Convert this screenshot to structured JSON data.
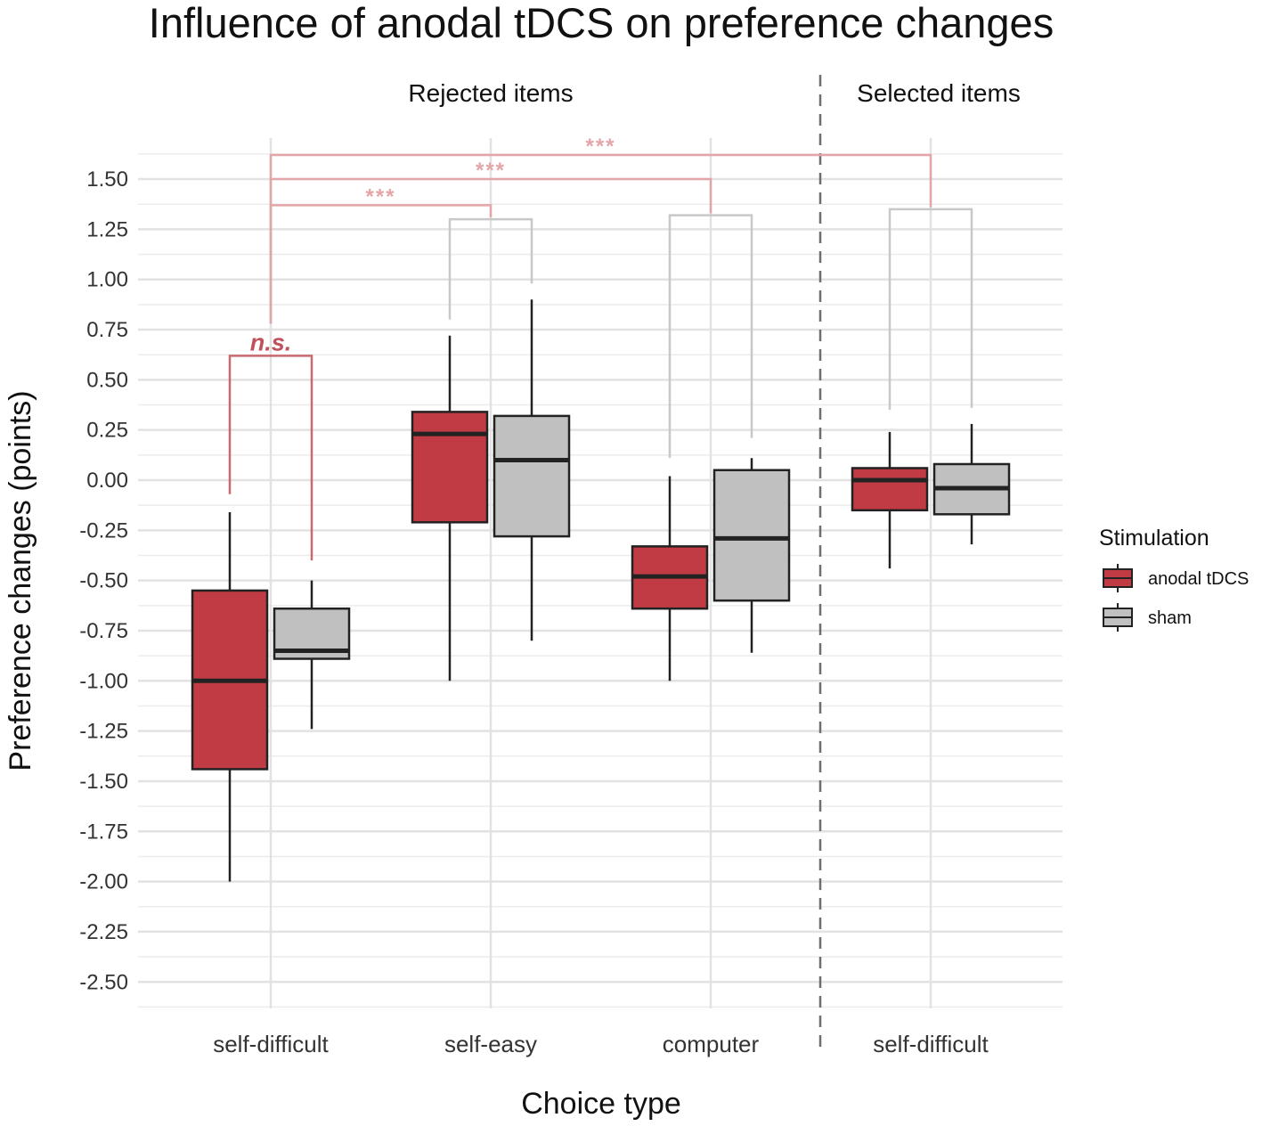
{
  "chart_data": {
    "type": "boxplot",
    "title": "Influence of anodal tDCS on preference changes",
    "xlabel": "Choice type",
    "ylabel": "Preference changes (points)",
    "ylim": [
      -2.6,
      1.7
    ],
    "yticks": [
      1.5,
      1.25,
      1.0,
      0.75,
      0.5,
      0.25,
      0.0,
      -0.25,
      -0.5,
      -0.75,
      -1.0,
      -1.25,
      -1.5,
      -1.75,
      -2.0,
      -2.25,
      -2.5
    ],
    "ytick_labels": [
      "1.50",
      "1.25",
      "1.00",
      "0.75",
      "0.50",
      "0.25",
      "0.00",
      "-0.25",
      "-0.50",
      "-0.75",
      "-1.00",
      "-1.25",
      "-1.50",
      "-1.75",
      "-2.00",
      "-2.25",
      "-2.50"
    ],
    "sections": [
      {
        "label": "Rejected items",
        "categories": [
          0,
          1,
          2
        ]
      },
      {
        "label": "Selected items",
        "categories": [
          3
        ]
      }
    ],
    "categories": [
      "self-difficult",
      "self-easy",
      "computer",
      "self-difficult"
    ],
    "legend": {
      "title": "Stimulation",
      "position": "right"
    },
    "series": [
      {
        "name": "anodal tDCS",
        "color": "#c03b44",
        "boxes": [
          {
            "min": -2.0,
            "q1": -1.44,
            "median": -1.0,
            "q3": -0.55,
            "max": -0.16
          },
          {
            "min": -1.0,
            "q1": -0.21,
            "median": 0.23,
            "q3": 0.34,
            "max": 0.72
          },
          {
            "min": -1.0,
            "q1": -0.64,
            "median": -0.48,
            "q3": -0.33,
            "max": 0.02
          },
          {
            "min": -0.44,
            "q1": -0.15,
            "median": 0.0,
            "q3": 0.06,
            "max": 0.24
          }
        ]
      },
      {
        "name": "sham",
        "color": "#c0c0c0",
        "boxes": [
          {
            "min": -1.24,
            "q1": -0.89,
            "median": -0.85,
            "q3": -0.64,
            "max": -0.5
          },
          {
            "min": -0.8,
            "q1": -0.28,
            "median": 0.1,
            "q3": 0.32,
            "max": 0.9
          },
          {
            "min": -0.86,
            "q1": -0.6,
            "median": -0.29,
            "q3": 0.05,
            "max": 0.11
          },
          {
            "min": -0.32,
            "q1": -0.17,
            "median": -0.04,
            "q3": 0.08,
            "max": 0.28
          }
        ]
      }
    ],
    "pair_brackets": [
      {
        "category": 0,
        "label": "n.s.",
        "y": 0.62,
        "color": "#c96a70"
      },
      {
        "category": 1,
        "label": "",
        "y": 1.3,
        "color": "#c8c8c8"
      },
      {
        "category": 2,
        "label": "",
        "y": 1.32,
        "color": "#c8c8c8"
      },
      {
        "category": 3,
        "label": "",
        "y": 1.35,
        "color": "#c8c8c8"
      }
    ],
    "comparisons": [
      {
        "from": 0,
        "to": 1,
        "label": "***",
        "y": 1.37
      },
      {
        "from": 0,
        "to": 2,
        "label": "***",
        "y": 1.5
      },
      {
        "from": 0,
        "to": 3,
        "label": "***",
        "y": 1.62
      }
    ]
  }
}
